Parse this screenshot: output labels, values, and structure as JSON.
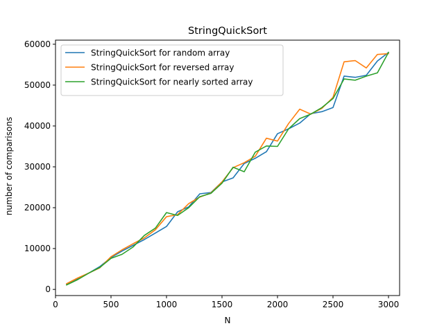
{
  "chart_data": {
    "type": "line",
    "title": "StringQuickSort",
    "xlabel": "N",
    "ylabel": "number of comparisons",
    "xlim": [
      0,
      3100
    ],
    "ylim": [
      -1500,
      61000
    ],
    "xticks": [
      0,
      500,
      1000,
      1500,
      2000,
      2500,
      3000
    ],
    "xtick_labels": [
      "0",
      "500",
      "1000",
      "1500",
      "2000",
      "2500",
      "3000"
    ],
    "yticks": [
      0,
      10000,
      20000,
      30000,
      40000,
      50000,
      60000
    ],
    "ytick_labels": [
      "0",
      "10000",
      "20000",
      "30000",
      "40000",
      "50000",
      "60000"
    ],
    "grid": false,
    "legend_position": "top-left",
    "x": [
      100,
      200,
      300,
      400,
      500,
      600,
      700,
      800,
      900,
      1000,
      1100,
      1200,
      1300,
      1400,
      1500,
      1600,
      1700,
      1800,
      1900,
      2000,
      2100,
      2200,
      2300,
      2400,
      2500,
      2600,
      2700,
      2800,
      2900,
      3000
    ],
    "series": [
      {
        "name": "StringQuickSort for random array",
        "color": "#1f77b4",
        "values": [
          1200,
          2600,
          4000,
          5600,
          7800,
          9400,
          10800,
          12200,
          13800,
          15400,
          19000,
          20200,
          23400,
          23700,
          26300,
          27300,
          30800,
          32100,
          33700,
          38100,
          39300,
          40700,
          43000,
          43500,
          44500,
          52200,
          51900,
          52400,
          55900,
          58000
        ]
      },
      {
        "name": "StringQuickSort for reversed array",
        "color": "#ff7f0e",
        "values": [
          1400,
          2800,
          4000,
          5300,
          8000,
          9700,
          11200,
          12600,
          14600,
          17800,
          18300,
          21000,
          22600,
          23600,
          26300,
          29800,
          31000,
          32600,
          37000,
          36300,
          40600,
          44100,
          42900,
          44300,
          47000,
          55700,
          56000,
          54200,
          57500,
          57700
        ]
      },
      {
        "name": "StringQuickSort for nearly sorted array",
        "color": "#2ca02c",
        "values": [
          1100,
          2400,
          4000,
          5400,
          7600,
          8600,
          10400,
          13200,
          15000,
          18800,
          18100,
          20000,
          22700,
          23500,
          26000,
          29900,
          28800,
          33600,
          35100,
          35000,
          39300,
          41800,
          42900,
          44500,
          46700,
          51500,
          51200,
          52200,
          53000,
          58000
        ]
      }
    ]
  }
}
